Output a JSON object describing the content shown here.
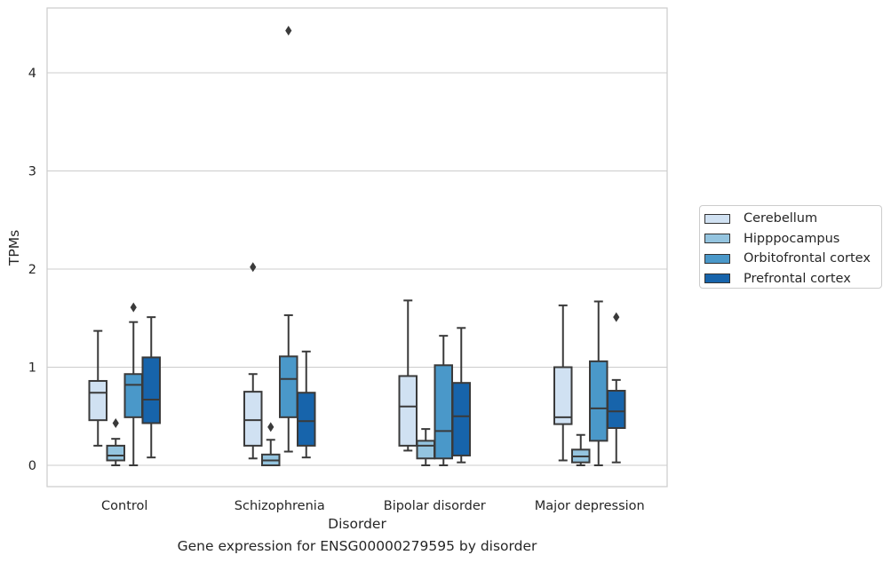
{
  "chart_data": {
    "type": "box",
    "xlabel": "Disorder",
    "ylabel": "TPMs",
    "caption": "Gene expression for ENSG00000279595 by disorder",
    "categories": [
      "Control",
      "Schizophrenia",
      "Bipolar disorder",
      "Major depression"
    ],
    "yticks": [
      "0",
      "1",
      "2",
      "3",
      "4"
    ],
    "ylim": [
      -0.22,
      4.66
    ],
    "grid": "horizontal",
    "legend_position": "right",
    "series": [
      {
        "name": "Cerebellum",
        "color": "#d0e1f2",
        "boxes": [
          {
            "whisker_low": 0.2,
            "q1": 0.46,
            "median": 0.74,
            "q3": 0.86,
            "whisker_high": 1.37,
            "outliers": []
          },
          {
            "whisker_low": 0.07,
            "q1": 0.2,
            "median": 0.46,
            "q3": 0.75,
            "whisker_high": 0.93,
            "outliers": [
              2.02
            ]
          },
          {
            "whisker_low": 0.15,
            "q1": 0.2,
            "median": 0.6,
            "q3": 0.91,
            "whisker_high": 1.68,
            "outliers": []
          },
          {
            "whisker_low": 0.05,
            "q1": 0.42,
            "median": 0.49,
            "q3": 1.0,
            "whisker_high": 1.63,
            "outliers": []
          }
        ]
      },
      {
        "name": "Hipppocampus",
        "color": "#94c4df",
        "boxes": [
          {
            "whisker_low": 0.0,
            "q1": 0.05,
            "median": 0.1,
            "q3": 0.2,
            "whisker_high": 0.27,
            "outliers": [
              0.43
            ]
          },
          {
            "whisker_low": 0.0,
            "q1": 0.0,
            "median": 0.05,
            "q3": 0.11,
            "whisker_high": 0.26,
            "outliers": [
              0.39
            ]
          },
          {
            "whisker_low": 0.0,
            "q1": 0.07,
            "median": 0.2,
            "q3": 0.25,
            "whisker_high": 0.37,
            "outliers": []
          },
          {
            "whisker_low": 0.0,
            "q1": 0.03,
            "median": 0.09,
            "q3": 0.16,
            "whisker_high": 0.31,
            "outliers": []
          }
        ]
      },
      {
        "name": "Orbitofrontal cortex",
        "color": "#4a98c9",
        "boxes": [
          {
            "whisker_low": 0.0,
            "q1": 0.49,
            "median": 0.82,
            "q3": 0.93,
            "whisker_high": 1.46,
            "outliers": [
              1.61
            ]
          },
          {
            "whisker_low": 0.14,
            "q1": 0.49,
            "median": 0.88,
            "q3": 1.11,
            "whisker_high": 1.53,
            "outliers": [
              4.43
            ]
          },
          {
            "whisker_low": 0.0,
            "q1": 0.07,
            "median": 0.35,
            "q3": 1.02,
            "whisker_high": 1.32,
            "outliers": []
          },
          {
            "whisker_low": 0.0,
            "q1": 0.25,
            "median": 0.58,
            "q3": 1.06,
            "whisker_high": 1.67,
            "outliers": []
          }
        ]
      },
      {
        "name": "Prefrontal cortex",
        "color": "#1764ab",
        "boxes": [
          {
            "whisker_low": 0.08,
            "q1": 0.43,
            "median": 0.67,
            "q3": 1.1,
            "whisker_high": 1.51,
            "outliers": []
          },
          {
            "whisker_low": 0.08,
            "q1": 0.2,
            "median": 0.45,
            "q3": 0.74,
            "whisker_high": 1.16,
            "outliers": []
          },
          {
            "whisker_low": 0.03,
            "q1": 0.1,
            "median": 0.5,
            "q3": 0.84,
            "whisker_high": 1.4,
            "outliers": []
          },
          {
            "whisker_low": 0.03,
            "q1": 0.38,
            "median": 0.55,
            "q3": 0.76,
            "whisker_high": 0.87,
            "outliers": [
              1.51
            ]
          }
        ]
      }
    ]
  }
}
